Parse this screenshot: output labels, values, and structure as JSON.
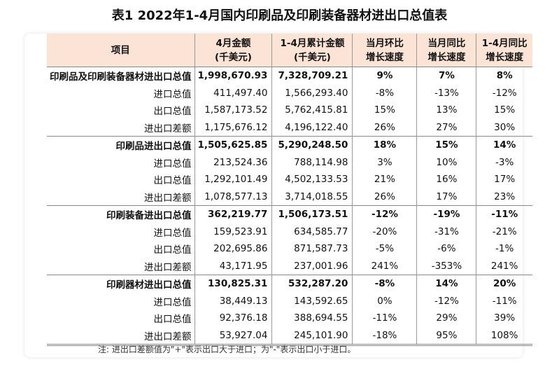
{
  "title": "表1  2022年1-4月国内印刷品及印刷装备器材进出口总值表",
  "headers": [
    "项目",
    "4月金额\n(千美元)",
    "1-4月累计金额\n(千美元)",
    "当月环比\n增长速度",
    "当月同比\n增长速度",
    "1-4月同比\n增长速度"
  ],
  "rows": [
    {
      "main": true,
      "cells": [
        "印刷品及印刷装备器材进出口总值",
        "1,998,670.93",
        "7,328,709.21",
        "9%",
        "7%",
        "8%"
      ]
    },
    {
      "cells": [
        "进口总值",
        "411,497.40",
        "1,566,293.40",
        "-8%",
        "-13%",
        "-12%"
      ]
    },
    {
      "cells": [
        "出口总值",
        "1,587,173.52",
        "5,762,415.81",
        "15%",
        "13%",
        "15%"
      ]
    },
    {
      "cells": [
        "进出口差额",
        "1,175,676.12",
        "4,196,122.40",
        "26%",
        "27%",
        "30%"
      ]
    },
    {
      "main": true,
      "cells": [
        "印刷品进出口总值",
        "1,505,625.85",
        "5,290,248.50",
        "18%",
        "15%",
        "14%"
      ]
    },
    {
      "cells": [
        "进口总值",
        "213,524.36",
        "788,114.98",
        "3%",
        "10%",
        "-3%"
      ]
    },
    {
      "cells": [
        "出口总值",
        "1,292,101.49",
        "4,502,133.53",
        "21%",
        "16%",
        "17%"
      ]
    },
    {
      "cells": [
        "进出口差额",
        "1,078,577.13",
        "3,714,018.55",
        "26%",
        "17%",
        "23%"
      ]
    },
    {
      "main": true,
      "cells": [
        "印刷装备进出口总值",
        "362,219.77",
        "1,506,173.51",
        "-12%",
        "-19%",
        "-11%"
      ]
    },
    {
      "cells": [
        "进口总值",
        "159,523.91",
        "634,585.77",
        "-20%",
        "-31%",
        "-21%"
      ]
    },
    {
      "cells": [
        "出口总值",
        "202,695.86",
        "871,587.73",
        "-5%",
        "-6%",
        "-1%"
      ]
    },
    {
      "cells": [
        "进出口差额",
        "43,171.95",
        "237,001.96",
        "241%",
        "-353%",
        "241%"
      ]
    },
    {
      "main": true,
      "cells": [
        "印刷器材进出口总值",
        "130,825.31",
        "532,287.20",
        "-8%",
        "14%",
        "20%"
      ]
    },
    {
      "cells": [
        "进口总值",
        "38,449.13",
        "143,592.65",
        "0%",
        "-12%",
        "-11%"
      ]
    },
    {
      "cells": [
        "出口总值",
        "92,376.18",
        "388,694.55",
        "-11%",
        "29%",
        "39%"
      ]
    },
    {
      "cells": [
        "进出口差额",
        "53,927.04",
        "245,101.90",
        "-18%",
        "95%",
        "108%"
      ]
    }
  ],
  "note": "注: 进出口差额值为\"+\"表示出口大于进口；为\"-\"表示出口小于进口。"
}
